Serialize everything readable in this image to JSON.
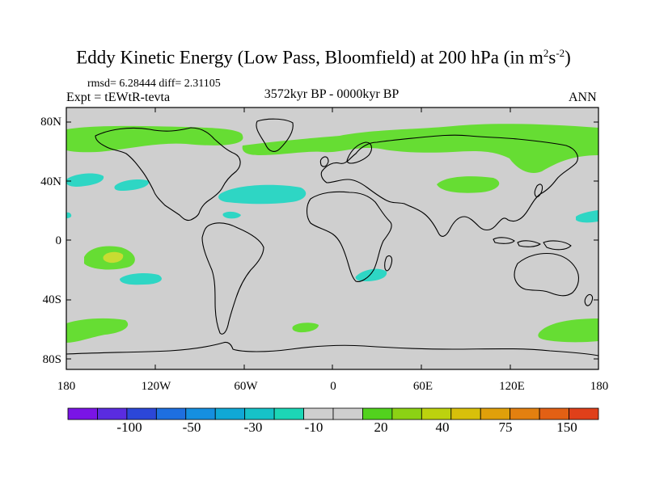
{
  "title_main": "Eddy Kinetic Energy (Low Pass, Bloomfield) at 200 hPa (in m",
  "title_sup1": "2",
  "title_s": "s",
  "title_sup2": "-2",
  "title_close": ")",
  "stats_text": "rmsd= 6.28444 diff= 2.31105",
  "expt_text": "Expt = tEWtR-tevta",
  "period_text": "3572kyr BP - 0000kyr BP",
  "season_text": "ANN",
  "lat_labels": [
    "80N",
    "40N",
    "0",
    "40S",
    "80S"
  ],
  "lon_labels": [
    "180",
    "120W",
    "60W",
    "0",
    "60E",
    "120E",
    "180"
  ],
  "colorbar": {
    "colors": [
      "#7a14e6",
      "#5a2ce0",
      "#2c47d8",
      "#1e6fe0",
      "#158fe0",
      "#10a8d6",
      "#16c2c8",
      "#1cd6b6",
      "#cfcfcf",
      "#cfcfcf",
      "#52d21e",
      "#8cd214",
      "#bcd20e",
      "#d8c00a",
      "#e0a00a",
      "#e38010",
      "#e26014",
      "#e0401a"
    ],
    "labels": [
      "-100",
      "-50",
      "-30",
      "-10",
      "20",
      "40",
      "75",
      "150"
    ]
  },
  "map_colors": {
    "background": "#cfcfcf",
    "green": "#66dd33",
    "cyan": "#2ed6c4",
    "yellow": "#c8dc32"
  }
}
